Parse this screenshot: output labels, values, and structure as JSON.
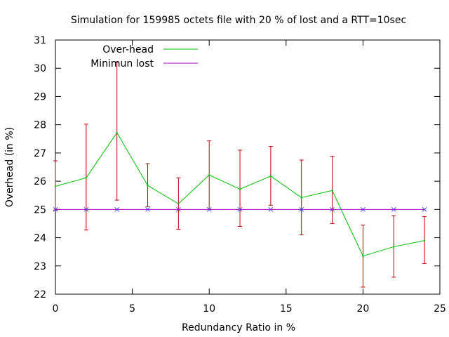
{
  "chart_data": {
    "type": "line",
    "title": "Simulation for 159985 octets file with 20 % of lost and a RTT=10sec",
    "xlabel": "Redundancy Ratio in %",
    "ylabel": "Overhead (in %)",
    "xlim": [
      0,
      25
    ],
    "ylim": [
      22,
      31
    ],
    "xticks": [
      0,
      5,
      10,
      15,
      20,
      25
    ],
    "yticks": [
      22,
      23,
      24,
      25,
      26,
      27,
      28,
      29,
      30,
      31
    ],
    "grid": false,
    "legend_position": "top-left",
    "x": [
      0,
      2,
      4,
      6,
      8,
      10,
      12,
      14,
      16,
      18,
      20,
      22,
      24
    ],
    "series": [
      {
        "name": "Over-head",
        "color": "#00c000",
        "values": [
          25.82,
          26.12,
          27.72,
          25.85,
          25.2,
          26.22,
          25.72,
          26.18,
          25.42,
          25.67,
          23.35,
          23.68,
          23.9
        ],
        "error_low": [
          24.98,
          24.27,
          25.33,
          25.1,
          24.3,
          25.0,
          24.4,
          25.15,
          24.1,
          24.5,
          22.25,
          22.6,
          23.08
        ],
        "error_high": [
          26.72,
          28.02,
          30.22,
          26.62,
          26.12,
          27.43,
          27.1,
          27.23,
          26.75,
          26.88,
          24.45,
          24.78,
          24.75
        ],
        "error_color": "#c00000"
      },
      {
        "name": "Minimun lost",
        "color": "#a000c0",
        "marker_color": "#4040ff",
        "values": [
          25,
          25,
          25,
          25,
          25,
          25,
          25,
          25,
          25,
          25,
          25,
          25,
          25
        ]
      }
    ]
  }
}
